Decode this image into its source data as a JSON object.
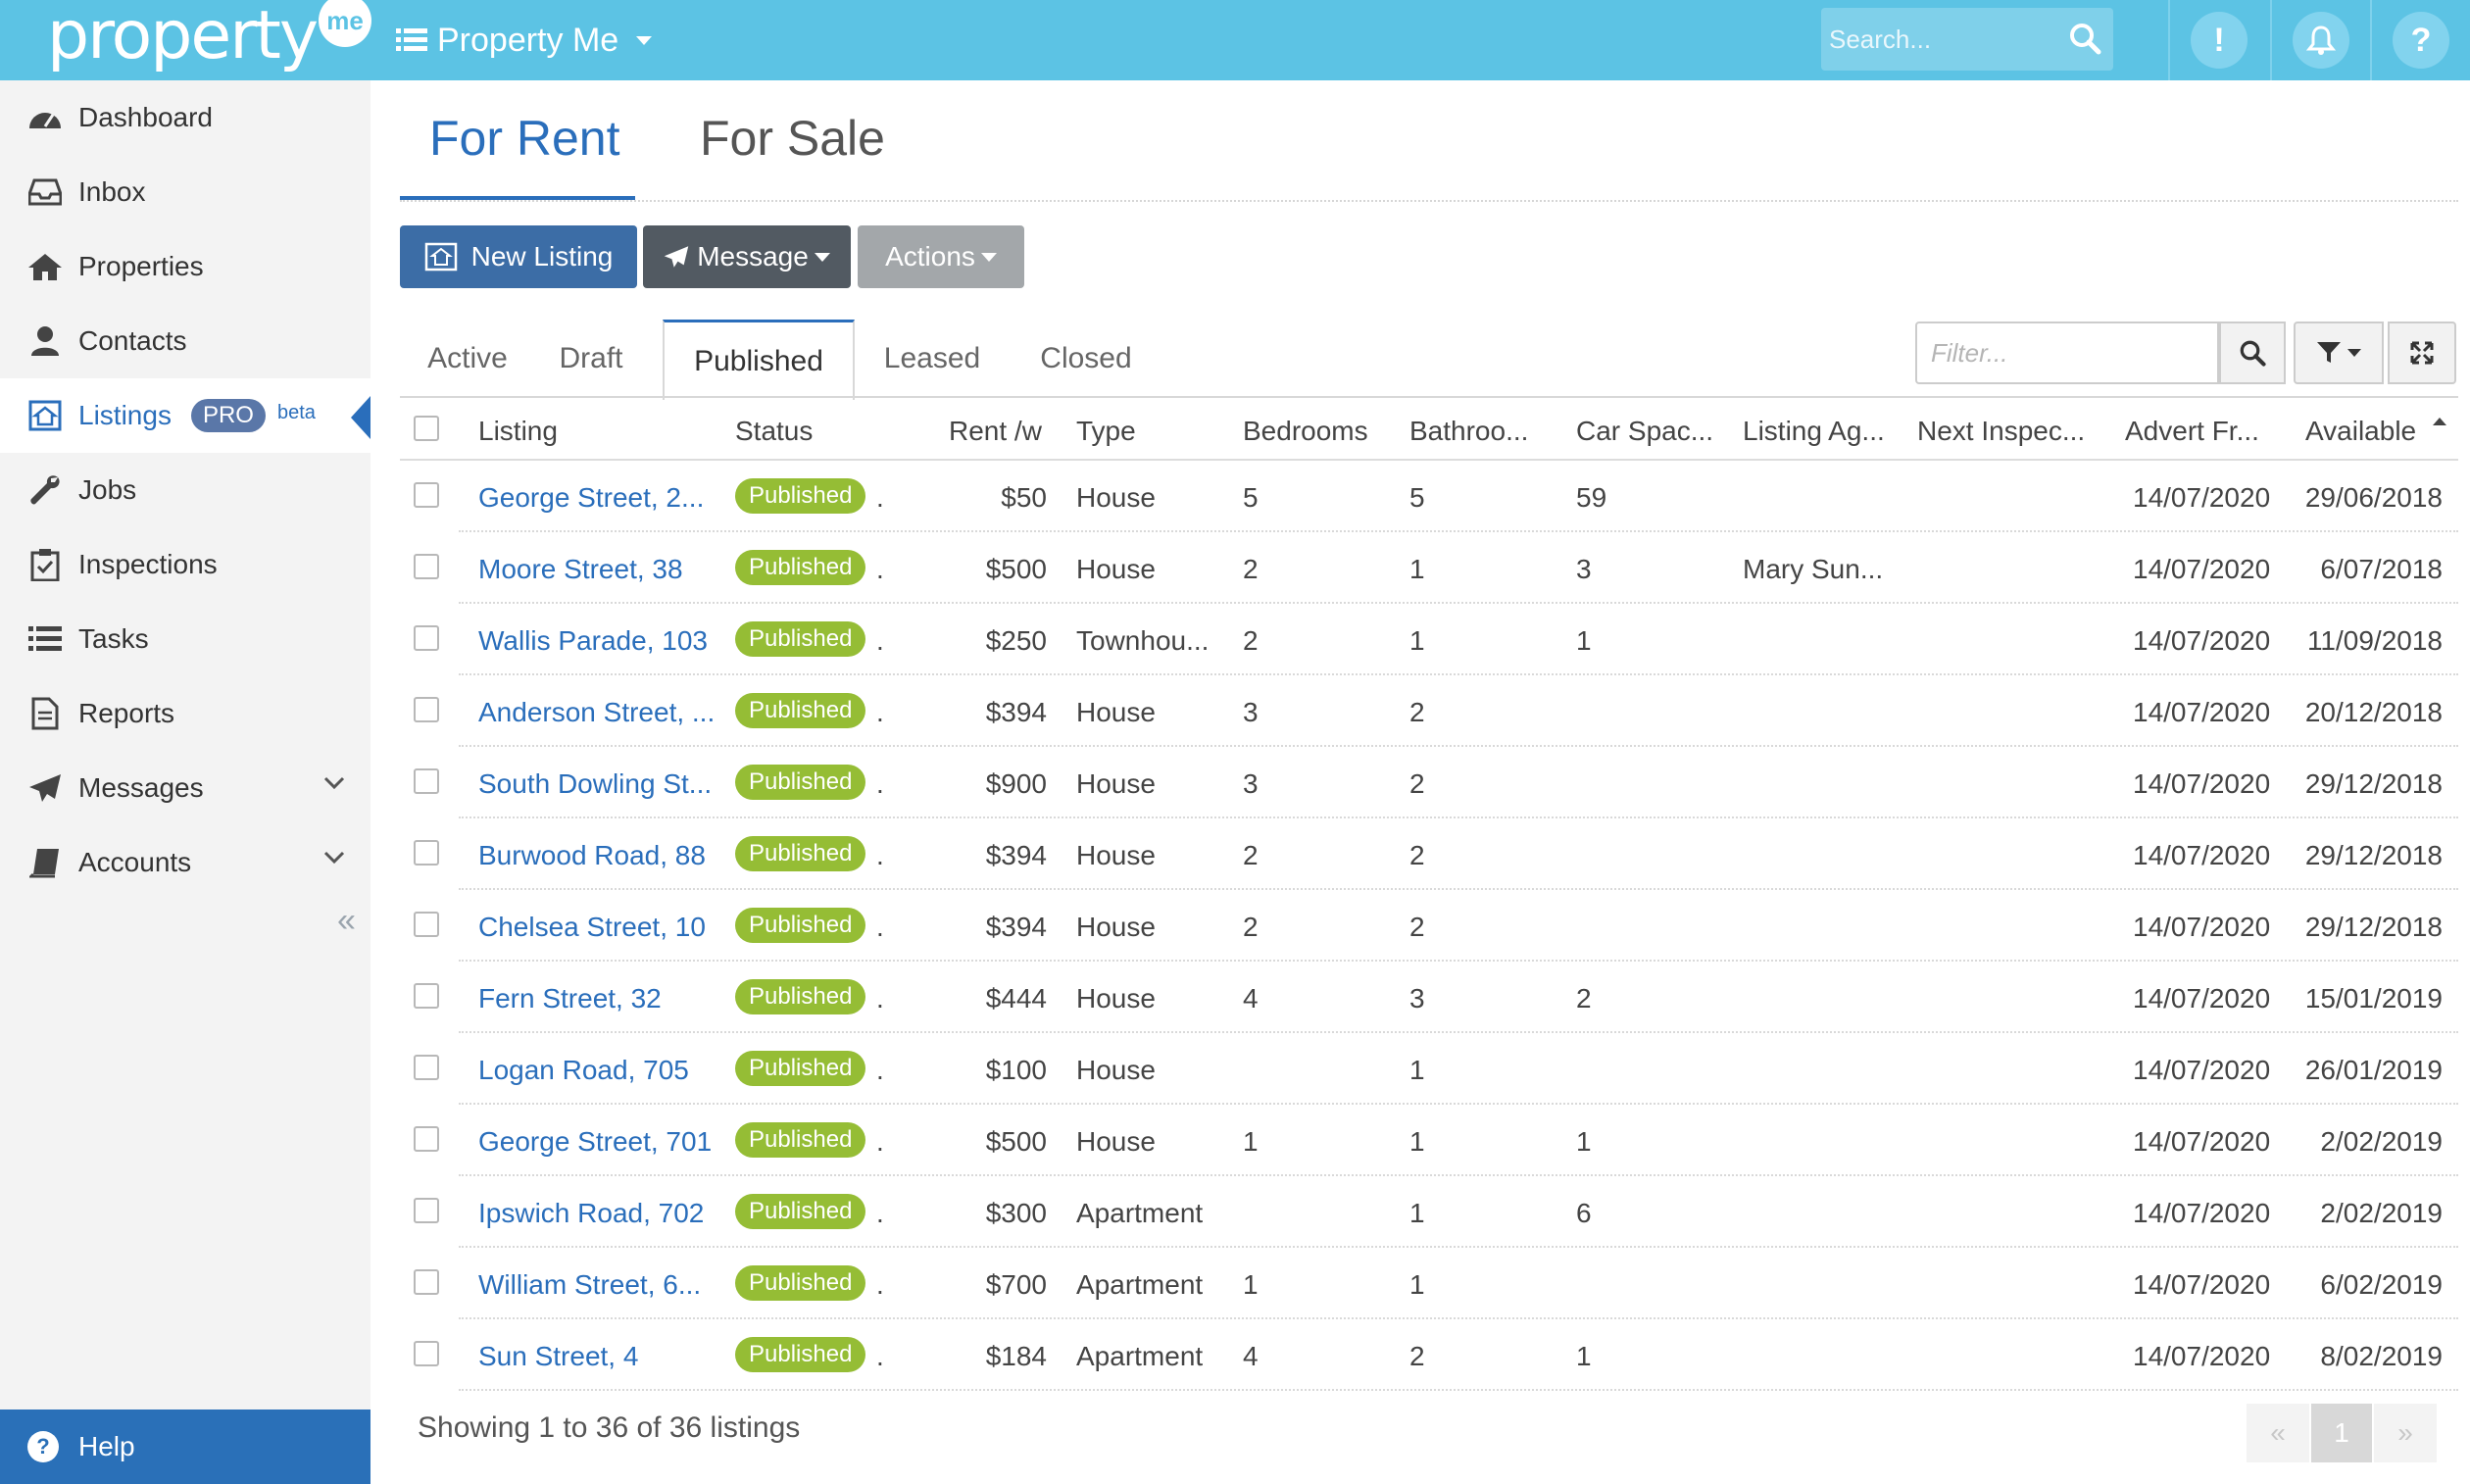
{
  "topbar": {
    "logo_text": "property",
    "logo_badge": "me",
    "app_name": "Property Me",
    "search_placeholder": "Search...",
    "alert_symbol": "!",
    "help_symbol": "?"
  },
  "sidebar": {
    "items": [
      {
        "label": "Dashboard",
        "icon": "dashboard-icon"
      },
      {
        "label": "Inbox",
        "icon": "inbox-icon"
      },
      {
        "label": "Properties",
        "icon": "home-icon"
      },
      {
        "label": "Contacts",
        "icon": "user-icon"
      },
      {
        "label": "Listings",
        "icon": "listing-icon",
        "badge": "PRO",
        "tag": "beta"
      },
      {
        "label": "Jobs",
        "icon": "wrench-icon"
      },
      {
        "label": "Inspections",
        "icon": "clipboard-check-icon"
      },
      {
        "label": "Tasks",
        "icon": "list-icon"
      },
      {
        "label": "Reports",
        "icon": "document-icon"
      },
      {
        "label": "Messages",
        "icon": "paper-plane-icon"
      },
      {
        "label": "Accounts",
        "icon": "book-icon"
      }
    ],
    "collapse_symbol": "«",
    "help_label": "Help",
    "help_symbol": "?"
  },
  "page_tabs": {
    "for_rent": "For Rent",
    "for_sale": "For Sale"
  },
  "toolbar": {
    "new_listing": "New Listing",
    "message": "Message",
    "actions": "Actions"
  },
  "status_tabs": {
    "active": "Active",
    "draft": "Draft",
    "published": "Published",
    "leased": "Leased",
    "closed": "Closed"
  },
  "filter": {
    "placeholder": "Filter..."
  },
  "table": {
    "columns": {
      "listing": "Listing",
      "status": "Status",
      "rent": "Rent /w",
      "type": "Type",
      "bedrooms": "Bedrooms",
      "bathrooms": "Bathroo...",
      "car_spaces": "Car Spac...",
      "listing_agent": "Listing Ag...",
      "next_inspection": "Next Inspec...",
      "advert_from": "Advert Fr...",
      "available": "Available"
    },
    "rows": [
      {
        "listing": "George Street, 2...",
        "status": "Published",
        "rent": "$50",
        "type": "House",
        "bed": "5",
        "bath": "5",
        "car": "59",
        "agent": "",
        "advert": "14/07/2020",
        "available": "29/06/2018"
      },
      {
        "listing": "Moore Street, 38",
        "status": "Published",
        "rent": "$500",
        "type": "House",
        "bed": "2",
        "bath": "1",
        "car": "3",
        "agent": "Mary Sun...",
        "advert": "14/07/2020",
        "available": "6/07/2018"
      },
      {
        "listing": "Wallis Parade, 103",
        "status": "Published",
        "rent": "$250",
        "type": "Townhou...",
        "bed": "2",
        "bath": "1",
        "car": "1",
        "agent": "",
        "advert": "14/07/2020",
        "available": "11/09/2018"
      },
      {
        "listing": "Anderson Street, ...",
        "status": "Published",
        "rent": "$394",
        "type": "House",
        "bed": "3",
        "bath": "2",
        "car": "",
        "agent": "",
        "advert": "14/07/2020",
        "available": "20/12/2018"
      },
      {
        "listing": "South Dowling St...",
        "status": "Published",
        "rent": "$900",
        "type": "House",
        "bed": "3",
        "bath": "2",
        "car": "",
        "agent": "",
        "advert": "14/07/2020",
        "available": "29/12/2018"
      },
      {
        "listing": "Burwood Road, 88",
        "status": "Published",
        "rent": "$394",
        "type": "House",
        "bed": "2",
        "bath": "2",
        "car": "",
        "agent": "",
        "advert": "14/07/2020",
        "available": "29/12/2018"
      },
      {
        "listing": "Chelsea Street, 10",
        "status": "Published",
        "rent": "$394",
        "type": "House",
        "bed": "2",
        "bath": "2",
        "car": "",
        "agent": "",
        "advert": "14/07/2020",
        "available": "29/12/2018"
      },
      {
        "listing": "Fern Street, 32",
        "status": "Published",
        "rent": "$444",
        "type": "House",
        "bed": "4",
        "bath": "3",
        "car": "2",
        "agent": "",
        "advert": "14/07/2020",
        "available": "15/01/2019"
      },
      {
        "listing": "Logan Road, 705",
        "status": "Published",
        "rent": "$100",
        "type": "House",
        "bed": "",
        "bath": "1",
        "car": "",
        "agent": "",
        "advert": "14/07/2020",
        "available": "26/01/2019"
      },
      {
        "listing": "George Street, 701",
        "status": "Published",
        "rent": "$500",
        "type": "House",
        "bed": "1",
        "bath": "1",
        "car": "1",
        "agent": "",
        "advert": "14/07/2020",
        "available": "2/02/2019"
      },
      {
        "listing": "Ipswich Road, 702",
        "status": "Published",
        "rent": "$300",
        "type": "Apartment",
        "bed": "",
        "bath": "1",
        "car": "6",
        "agent": "",
        "advert": "14/07/2020",
        "available": "2/02/2019"
      },
      {
        "listing": "William Street, 6...",
        "status": "Published",
        "rent": "$700",
        "type": "Apartment",
        "bed": "1",
        "bath": "1",
        "car": "",
        "agent": "",
        "advert": "14/07/2020",
        "available": "6/02/2019"
      },
      {
        "listing": "Sun Street, 4",
        "status": "Published",
        "rent": "$184",
        "type": "Apartment",
        "bed": "4",
        "bath": "2",
        "car": "1",
        "agent": "",
        "advert": "14/07/2020",
        "available": "8/02/2019"
      }
    ],
    "status_suffix": "."
  },
  "footer": {
    "showing": "Showing 1 to 36 of 36 listings",
    "prev_symbol": "«",
    "current_page": "1",
    "next_symbol": "»"
  },
  "colors": {
    "topbar": "#5cc3e4",
    "accent": "#2a6ebb",
    "published_badge": "#95bd35",
    "help_bar": "#2a70b8"
  }
}
